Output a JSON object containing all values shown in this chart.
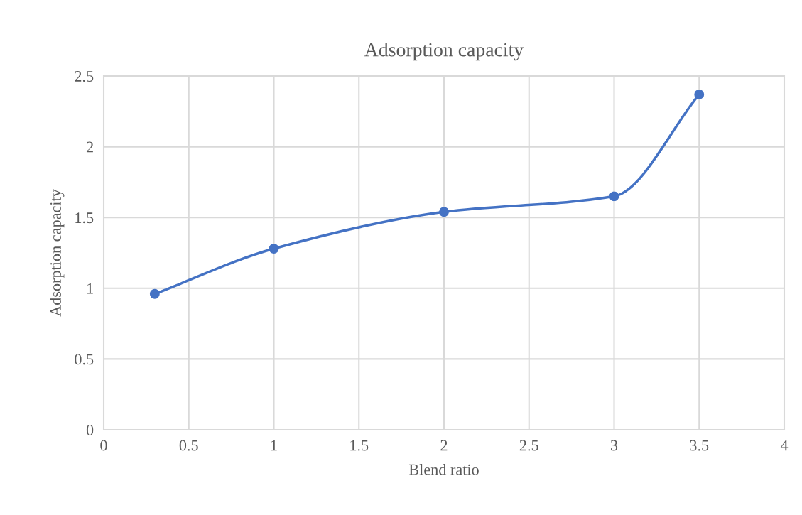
{
  "chart_data": {
    "type": "line",
    "title": "Adsorption capacity",
    "xlabel": "Blend ratio",
    "ylabel": "Adsorption capacity",
    "x": [
      0.3,
      1,
      2,
      3,
      3.5
    ],
    "series": [
      {
        "color": "#4472c4",
        "values": [
          0.96,
          1.28,
          1.54,
          1.65,
          2.37
        ]
      }
    ],
    "xlim": [
      0,
      4
    ],
    "xticks": [
      0,
      0.5,
      1,
      1.5,
      2,
      2.5,
      3,
      3.5,
      4
    ],
    "ylim": [
      0,
      2.5
    ],
    "yticks": [
      0,
      0.5,
      1,
      1.5,
      2,
      2.5
    ],
    "grid": true,
    "marker": "circle",
    "line_style": "solid",
    "legend": false
  }
}
